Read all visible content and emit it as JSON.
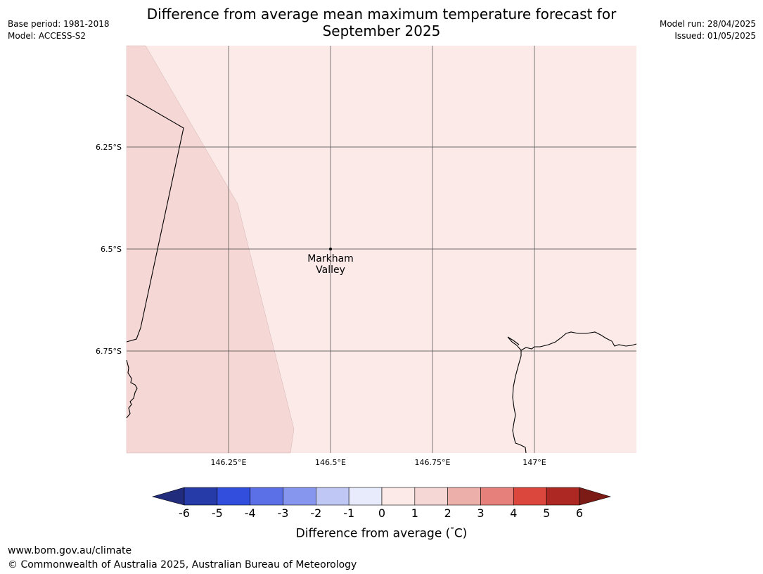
{
  "header": {
    "base_period": "Base period: 1981-2018",
    "model": "Model: ACCESS-S2",
    "model_run": "Model run: 28/04/2025",
    "issued": "Issued: 01/05/2025"
  },
  "title": {
    "line1": "Difference from average mean maximum temperature forecast for",
    "line2": "September 2025"
  },
  "map": {
    "lon_ticks": [
      "146.25°E",
      "146.5°E",
      "146.75°E",
      "147°E"
    ],
    "lat_ticks": [
      "6.25°S",
      "6.5°S",
      "6.75°S"
    ],
    "place_label": {
      "line1": "Markham",
      "line2": "Valley"
    },
    "colors": {
      "anomaly_0_to_1": "#fbeae8",
      "anomaly_1_to_2": "#f5d7d5",
      "gridline": "#555555",
      "coastline": "#000000"
    }
  },
  "colorbar": {
    "tick_labels": [
      "-6",
      "-5",
      "-4",
      "-3",
      "-2",
      "-1",
      "0",
      "1",
      "2",
      "3",
      "4",
      "5",
      "6"
    ],
    "under_color": "#222c7c",
    "over_color": "#7c1a16",
    "bin_colors": [
      "#263aa8",
      "#314fdc",
      "#5b70e6",
      "#8696ee",
      "#bfc8f5",
      "#e8ebfc",
      "#fbeae8",
      "#f5d7d5",
      "#edafaa",
      "#e6807a",
      "#dc473d",
      "#ad2822"
    ],
    "label": "Difference from average ($^\\circ$C)",
    "label_text": "Difference from average (",
    "label_degree": "°",
    "label_unit": "C)"
  },
  "footer": {
    "url": "www.bom.gov.au/climate",
    "copyright": "© Commonwealth of Australia 2025, Australian Bureau of Meteorology"
  }
}
